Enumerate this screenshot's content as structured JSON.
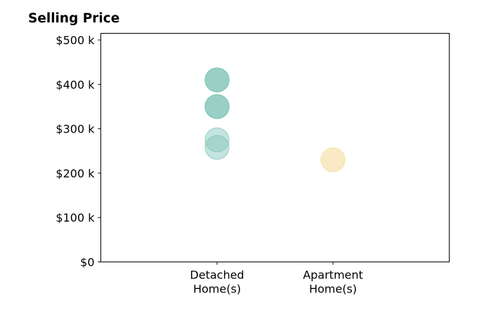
{
  "chart_data": {
    "type": "scatter",
    "title": "Selling Price",
    "xlabel": "",
    "ylabel": "",
    "categories": [
      [
        "Detached",
        "Home(s)"
      ],
      [
        "Apartment",
        "Home(s)"
      ]
    ],
    "y_ticks": [
      {
        "value": 0,
        "label": "$0"
      },
      {
        "value": 100000,
        "label": "$100 k"
      },
      {
        "value": 200000,
        "label": "$200 k"
      },
      {
        "value": 300000,
        "label": "$300 k"
      },
      {
        "value": 400000,
        "label": "$400 k"
      },
      {
        "value": 500000,
        "label": "$500 k"
      }
    ],
    "ylim": [
      0,
      515000
    ],
    "grid": false,
    "series": [
      {
        "category_index": 0,
        "color": "#7fc4b8",
        "points": [
          {
            "y": 410000,
            "opacity": 0.8
          },
          {
            "y": 350000,
            "opacity": 0.8
          },
          {
            "y": 275000,
            "opacity": 0.45
          },
          {
            "y": 258000,
            "opacity": 0.45
          }
        ]
      },
      {
        "category_index": 1,
        "color": "#f7e3b5",
        "points": [
          {
            "y": 230000,
            "opacity": 0.8
          }
        ]
      }
    ]
  }
}
